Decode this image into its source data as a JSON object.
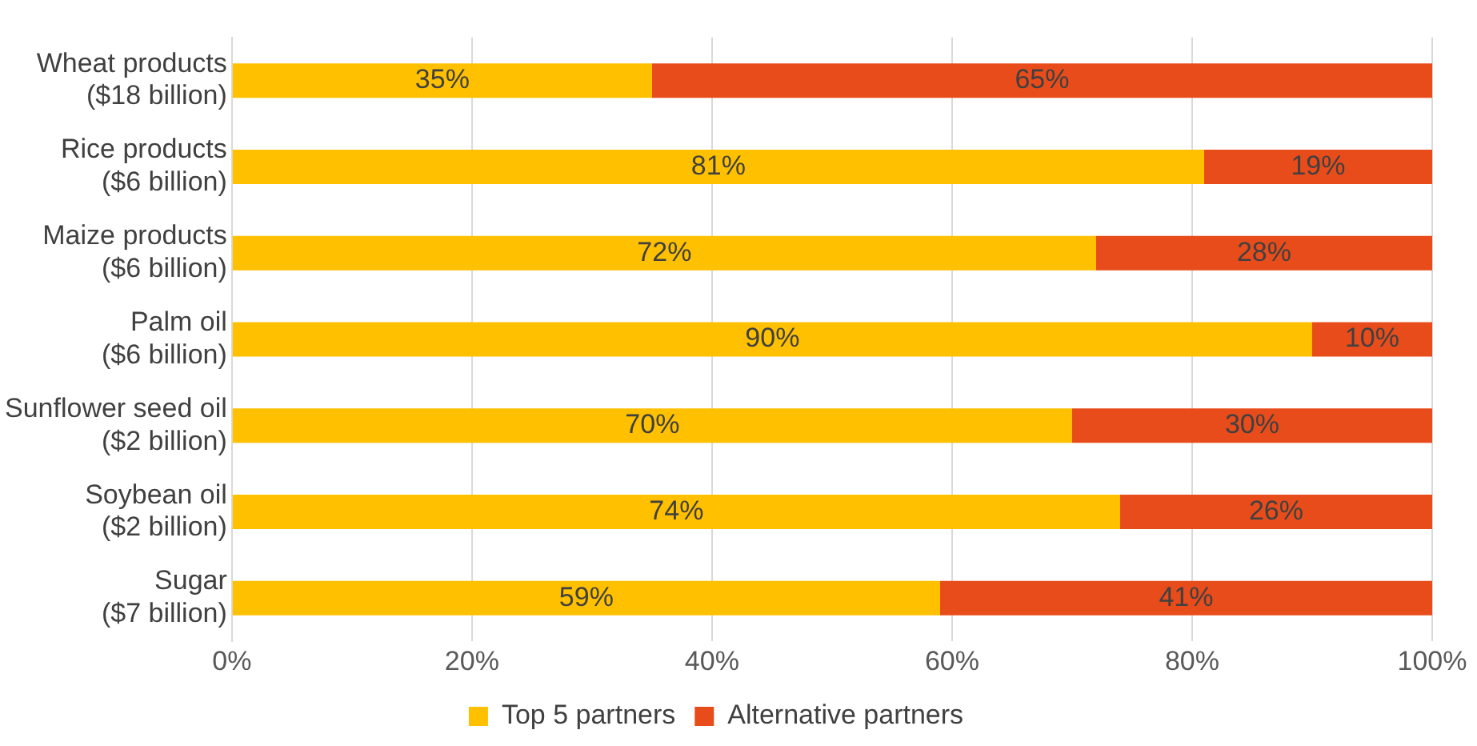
{
  "chart_data": {
    "type": "bar",
    "orientation": "horizontal",
    "stacked": true,
    "categories": [
      "Wheat products\n($18 billion)",
      "Rice products\n($6 billion)",
      "Maize products\n($6 billion)",
      "Palm oil\n($6 billion)",
      "Sunflower seed oil\n($2 billion)",
      "Soybean oil\n($2 billion)",
      "Sugar\n($7 billion)"
    ],
    "series": [
      {
        "name": "Top 5 partners",
        "color": "#ffc000",
        "values": [
          35,
          81,
          72,
          90,
          70,
          74,
          59
        ],
        "value_labels": [
          "35%",
          "81%",
          "72%",
          "90%",
          "70%",
          "74%",
          "59%"
        ]
      },
      {
        "name": "Alternative partners",
        "color": "#e84c1a",
        "values": [
          65,
          19,
          28,
          10,
          30,
          26,
          41
        ],
        "value_labels": [
          "65%",
          "19%",
          "28%",
          "10%",
          "30%",
          "26%",
          "41%"
        ]
      }
    ],
    "xlim": [
      0,
      100
    ],
    "xticks": [
      {
        "value": 0,
        "label": "0%"
      },
      {
        "value": 20,
        "label": "20%"
      },
      {
        "value": 40,
        "label": "40%"
      },
      {
        "value": 60,
        "label": "60%"
      },
      {
        "value": 80,
        "label": "80%"
      },
      {
        "value": 100,
        "label": "100%"
      }
    ],
    "grid": "x",
    "legend": "bottom"
  }
}
